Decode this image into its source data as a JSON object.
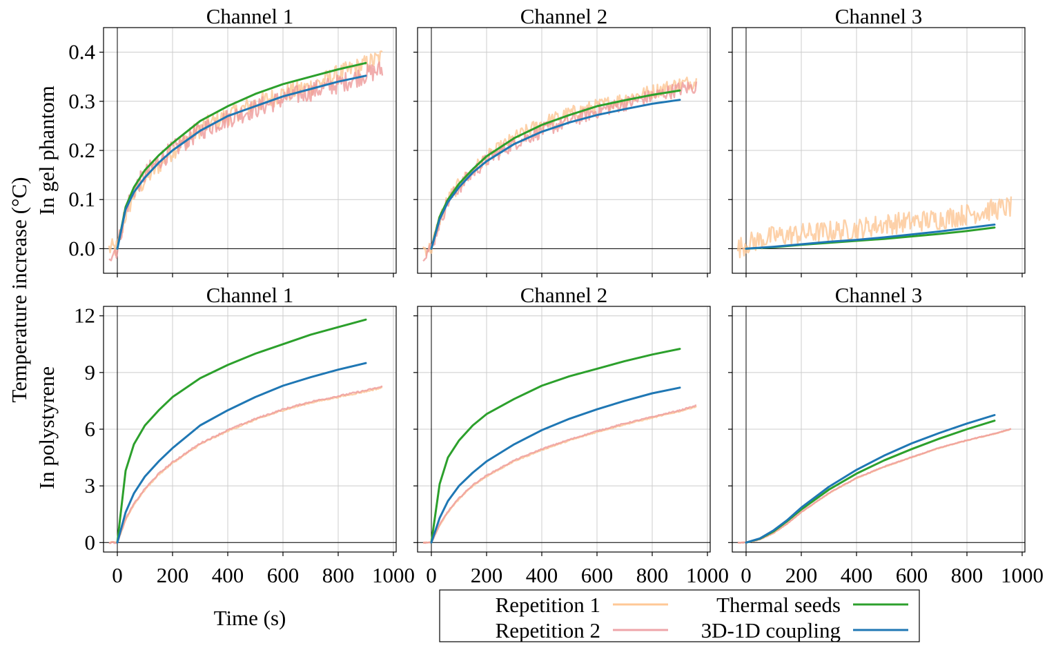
{
  "figure": {
    "ylabel_main": "Temperature increase (°C)",
    "row_labels": [
      "In gel phantom",
      "In polystyrene"
    ],
    "xlabel": "Time (s)",
    "legend": {
      "entries": [
        {
          "label": "Repetition 1",
          "color": "#ffc896"
        },
        {
          "label": "Repetition 2",
          "color": "#eea5a9"
        },
        {
          "label": "Thermal seeds",
          "color": "#2ca02c"
        },
        {
          "label": "3D-1D coupling",
          "color": "#1f77b4"
        }
      ]
    },
    "colors": {
      "rep1": "#fdc693",
      "rep2": "#ee9a9a",
      "seeds": "#2ca02c",
      "coupling": "#1f77b4"
    }
  },
  "chart_data": [
    {
      "type": "line",
      "title": "Channel 1",
      "row": 0,
      "col": 0,
      "xlim": [
        -50,
        1010
      ],
      "ylim": [
        -0.05,
        0.45
      ],
      "xticks": [
        0,
        200,
        400,
        600,
        800,
        1000
      ],
      "yticks": [
        0.0,
        0.1,
        0.2,
        0.3,
        0.4
      ],
      "ytick_labels": [
        "0.0",
        "0.1",
        "0.2",
        "0.3",
        "0.4"
      ],
      "xtick_labels": [],
      "series": [
        {
          "name": "Repetition 1",
          "noise": 0.02,
          "x": [
            -30,
            0,
            30,
            60,
            100,
            150,
            200,
            300,
            400,
            500,
            600,
            700,
            800,
            900,
            960
          ],
          "y": [
            0,
            0,
            0.07,
            0.11,
            0.14,
            0.17,
            0.2,
            0.245,
            0.27,
            0.295,
            0.315,
            0.33,
            0.355,
            0.375,
            0.39
          ]
        },
        {
          "name": "Repetition 2",
          "noise": 0.02,
          "x": [
            -30,
            0,
            30,
            60,
            100,
            150,
            200,
            300,
            400,
            500,
            600,
            700,
            800,
            900,
            960
          ],
          "y": [
            -0.01,
            0,
            0.08,
            0.12,
            0.15,
            0.18,
            0.2,
            0.24,
            0.265,
            0.285,
            0.305,
            0.32,
            0.335,
            0.355,
            0.365
          ]
        },
        {
          "name": "Thermal seeds",
          "x": [
            0,
            30,
            60,
            100,
            150,
            200,
            300,
            400,
            500,
            600,
            700,
            800,
            900
          ],
          "y": [
            0,
            0.085,
            0.125,
            0.16,
            0.19,
            0.215,
            0.26,
            0.29,
            0.315,
            0.335,
            0.35,
            0.365,
            0.378
          ]
        },
        {
          "name": "3D-1D coupling",
          "x": [
            0,
            30,
            60,
            100,
            150,
            200,
            300,
            400,
            500,
            600,
            700,
            800,
            900
          ],
          "y": [
            0,
            0.08,
            0.115,
            0.145,
            0.175,
            0.2,
            0.24,
            0.27,
            0.29,
            0.31,
            0.325,
            0.34,
            0.352
          ]
        }
      ]
    },
    {
      "type": "line",
      "title": "Channel 2",
      "row": 0,
      "col": 1,
      "xlim": [
        -50,
        1010
      ],
      "ylim": [
        -0.05,
        0.45
      ],
      "xticks": [
        0,
        200,
        400,
        600,
        800,
        1000
      ],
      "yticks": [
        0.0,
        0.1,
        0.2,
        0.3,
        0.4
      ],
      "ytick_labels": [],
      "xtick_labels": [],
      "series": [
        {
          "name": "Repetition 1",
          "noise": 0.015,
          "x": [
            -30,
            0,
            30,
            60,
            100,
            150,
            200,
            300,
            400,
            500,
            600,
            700,
            800,
            900,
            960
          ],
          "y": [
            0,
            0,
            0.06,
            0.1,
            0.13,
            0.16,
            0.185,
            0.225,
            0.255,
            0.275,
            0.29,
            0.305,
            0.32,
            0.335,
            0.34
          ]
        },
        {
          "name": "Repetition 2",
          "noise": 0.015,
          "x": [
            -30,
            0,
            30,
            60,
            100,
            150,
            200,
            300,
            400,
            500,
            600,
            700,
            800,
            900,
            960
          ],
          "y": [
            -0.01,
            0,
            0.055,
            0.095,
            0.125,
            0.155,
            0.18,
            0.215,
            0.24,
            0.26,
            0.28,
            0.295,
            0.31,
            0.325,
            0.33
          ]
        },
        {
          "name": "Thermal seeds",
          "x": [
            0,
            30,
            60,
            100,
            150,
            200,
            300,
            400,
            500,
            600,
            700,
            800,
            900
          ],
          "y": [
            0,
            0.065,
            0.1,
            0.132,
            0.162,
            0.188,
            0.225,
            0.252,
            0.272,
            0.29,
            0.302,
            0.313,
            0.322
          ]
        },
        {
          "name": "3D-1D coupling",
          "x": [
            0,
            30,
            60,
            100,
            150,
            200,
            300,
            400,
            500,
            600,
            700,
            800,
            900
          ],
          "y": [
            0,
            0.06,
            0.095,
            0.125,
            0.155,
            0.178,
            0.213,
            0.238,
            0.257,
            0.272,
            0.284,
            0.295,
            0.303
          ]
        }
      ]
    },
    {
      "type": "line",
      "title": "Channel 3",
      "row": 0,
      "col": 2,
      "xlim": [
        -50,
        1010
      ],
      "ylim": [
        -0.05,
        0.45
      ],
      "xticks": [
        0,
        200,
        400,
        600,
        800,
        1000
      ],
      "yticks": [
        0.0,
        0.1,
        0.2,
        0.3,
        0.4
      ],
      "ytick_labels": [],
      "xtick_labels": [],
      "series": [
        {
          "name": "Repetition 1",
          "noise": 0.022,
          "x": [
            -30,
            0,
            100,
            200,
            300,
            400,
            500,
            600,
            700,
            800,
            900,
            960
          ],
          "y": [
            0,
            0.01,
            0.025,
            0.03,
            0.035,
            0.04,
            0.05,
            0.055,
            0.06,
            0.07,
            0.08,
            0.085
          ]
        },
        {
          "name": "Thermal seeds",
          "x": [
            0,
            100,
            200,
            300,
            400,
            500,
            600,
            700,
            800,
            900
          ],
          "y": [
            0,
            0.003,
            0.008,
            0.012,
            0.016,
            0.02,
            0.025,
            0.03,
            0.036,
            0.043
          ]
        },
        {
          "name": "3D-1D coupling",
          "x": [
            0,
            100,
            200,
            300,
            400,
            500,
            600,
            700,
            800,
            900
          ],
          "y": [
            0,
            0.004,
            0.009,
            0.014,
            0.018,
            0.023,
            0.029,
            0.035,
            0.042,
            0.049
          ]
        }
      ]
    },
    {
      "type": "line",
      "title": "Channel 1",
      "row": 1,
      "col": 0,
      "xlim": [
        -50,
        1010
      ],
      "ylim": [
        -0.5,
        12.5
      ],
      "xticks": [
        0,
        200,
        400,
        600,
        800,
        1000
      ],
      "yticks": [
        0,
        3,
        6,
        9,
        12
      ],
      "ytick_labels": [
        "0",
        "3",
        "6",
        "9",
        "12"
      ],
      "xtick_labels": [
        "0",
        "200",
        "400",
        "600",
        "800",
        "1000"
      ],
      "series": [
        {
          "name": "Repetition 1",
          "noise": 0.04,
          "x": [
            -30,
            0,
            30,
            60,
            100,
            150,
            200,
            300,
            400,
            500,
            600,
            700,
            800,
            900,
            960
          ],
          "y": [
            0,
            0,
            1.2,
            2.0,
            2.8,
            3.6,
            4.2,
            5.2,
            5.9,
            6.5,
            7.0,
            7.4,
            7.7,
            8.0,
            8.2
          ]
        },
        {
          "name": "Repetition 2",
          "noise": 0.04,
          "x": [
            -30,
            0,
            30,
            60,
            100,
            150,
            200,
            300,
            400,
            500,
            600,
            700,
            800,
            900,
            960
          ],
          "y": [
            0,
            0,
            1.25,
            2.05,
            2.85,
            3.65,
            4.25,
            5.25,
            5.95,
            6.55,
            7.05,
            7.45,
            7.75,
            8.05,
            8.25
          ]
        },
        {
          "name": "Thermal seeds",
          "x": [
            0,
            30,
            60,
            100,
            150,
            200,
            300,
            400,
            500,
            600,
            700,
            800,
            900
          ],
          "y": [
            0,
            3.8,
            5.2,
            6.2,
            7.0,
            7.7,
            8.7,
            9.4,
            10.0,
            10.5,
            11.0,
            11.4,
            11.8
          ]
        },
        {
          "name": "3D-1D coupling",
          "x": [
            0,
            30,
            60,
            100,
            150,
            200,
            300,
            400,
            500,
            600,
            700,
            800,
            900
          ],
          "y": [
            0,
            1.6,
            2.6,
            3.5,
            4.3,
            5.0,
            6.2,
            7.0,
            7.7,
            8.3,
            8.75,
            9.15,
            9.5
          ]
        }
      ]
    },
    {
      "type": "line",
      "title": "Channel 2",
      "row": 1,
      "col": 1,
      "xlim": [
        -50,
        1010
      ],
      "ylim": [
        -0.5,
        12.5
      ],
      "xticks": [
        0,
        200,
        400,
        600,
        800,
        1000
      ],
      "yticks": [
        0,
        3,
        6,
        9,
        12
      ],
      "ytick_labels": [],
      "xtick_labels": [
        "0",
        "200",
        "400",
        "600",
        "800",
        "1000"
      ],
      "series": [
        {
          "name": "Repetition 1",
          "noise": 0.03,
          "x": [
            -30,
            0,
            30,
            60,
            100,
            150,
            200,
            300,
            400,
            500,
            600,
            700,
            800,
            900,
            960
          ],
          "y": [
            0,
            0,
            0.9,
            1.6,
            2.3,
            3.0,
            3.5,
            4.3,
            4.9,
            5.4,
            5.85,
            6.25,
            6.6,
            6.95,
            7.2
          ]
        },
        {
          "name": "Repetition 2",
          "noise": 0.03,
          "x": [
            -30,
            0,
            30,
            60,
            100,
            150,
            200,
            300,
            400,
            500,
            600,
            700,
            800,
            900,
            960
          ],
          "y": [
            0,
            0,
            0.95,
            1.65,
            2.35,
            3.05,
            3.55,
            4.35,
            4.95,
            5.45,
            5.9,
            6.3,
            6.65,
            7.0,
            7.25
          ]
        },
        {
          "name": "Thermal seeds",
          "x": [
            0,
            30,
            60,
            100,
            150,
            200,
            300,
            400,
            500,
            600,
            700,
            800,
            900
          ],
          "y": [
            0,
            3.1,
            4.5,
            5.4,
            6.2,
            6.8,
            7.6,
            8.3,
            8.8,
            9.2,
            9.6,
            9.95,
            10.25
          ]
        },
        {
          "name": "3D-1D coupling",
          "x": [
            0,
            30,
            60,
            100,
            150,
            200,
            300,
            400,
            500,
            600,
            700,
            800,
            900
          ],
          "y": [
            0,
            1.3,
            2.2,
            3.0,
            3.7,
            4.3,
            5.2,
            5.95,
            6.55,
            7.05,
            7.5,
            7.9,
            8.2
          ]
        }
      ]
    },
    {
      "type": "line",
      "title": "Channel 3",
      "row": 1,
      "col": 2,
      "xlim": [
        -50,
        1010
      ],
      "ylim": [
        -0.5,
        12.5
      ],
      "xticks": [
        0,
        200,
        400,
        600,
        800,
        1000
      ],
      "yticks": [
        0,
        3,
        6,
        9,
        12
      ],
      "ytick_labels": [],
      "xtick_labels": [
        "0",
        "200",
        "400",
        "600",
        "800",
        "1000"
      ],
      "series": [
        {
          "name": "Repetition 1",
          "noise": 0.02,
          "x": [
            -30,
            0,
            50,
            100,
            150,
            200,
            300,
            400,
            500,
            600,
            700,
            800,
            900,
            960
          ],
          "y": [
            0,
            0,
            0.15,
            0.5,
            1.0,
            1.6,
            2.6,
            3.4,
            4.0,
            4.5,
            5.0,
            5.4,
            5.75,
            6.0
          ]
        },
        {
          "name": "Repetition 2",
          "noise": 0.02,
          "x": [
            -30,
            0,
            50,
            100,
            150,
            200,
            300,
            400,
            500,
            600,
            700,
            800,
            900,
            960
          ],
          "y": [
            0,
            0,
            0.16,
            0.52,
            1.02,
            1.62,
            2.62,
            3.42,
            4.02,
            4.52,
            5.02,
            5.42,
            5.77,
            6.02
          ]
        },
        {
          "name": "Thermal seeds",
          "x": [
            0,
            50,
            100,
            150,
            200,
            300,
            400,
            500,
            600,
            700,
            800,
            900
          ],
          "y": [
            0,
            0.2,
            0.6,
            1.15,
            1.75,
            2.8,
            3.65,
            4.35,
            4.95,
            5.5,
            6.0,
            6.45
          ]
        },
        {
          "name": "3D-1D coupling",
          "x": [
            0,
            50,
            100,
            150,
            200,
            300,
            400,
            500,
            600,
            700,
            800,
            900
          ],
          "y": [
            0,
            0.22,
            0.65,
            1.2,
            1.85,
            2.95,
            3.85,
            4.6,
            5.25,
            5.8,
            6.3,
            6.75
          ]
        }
      ]
    }
  ]
}
